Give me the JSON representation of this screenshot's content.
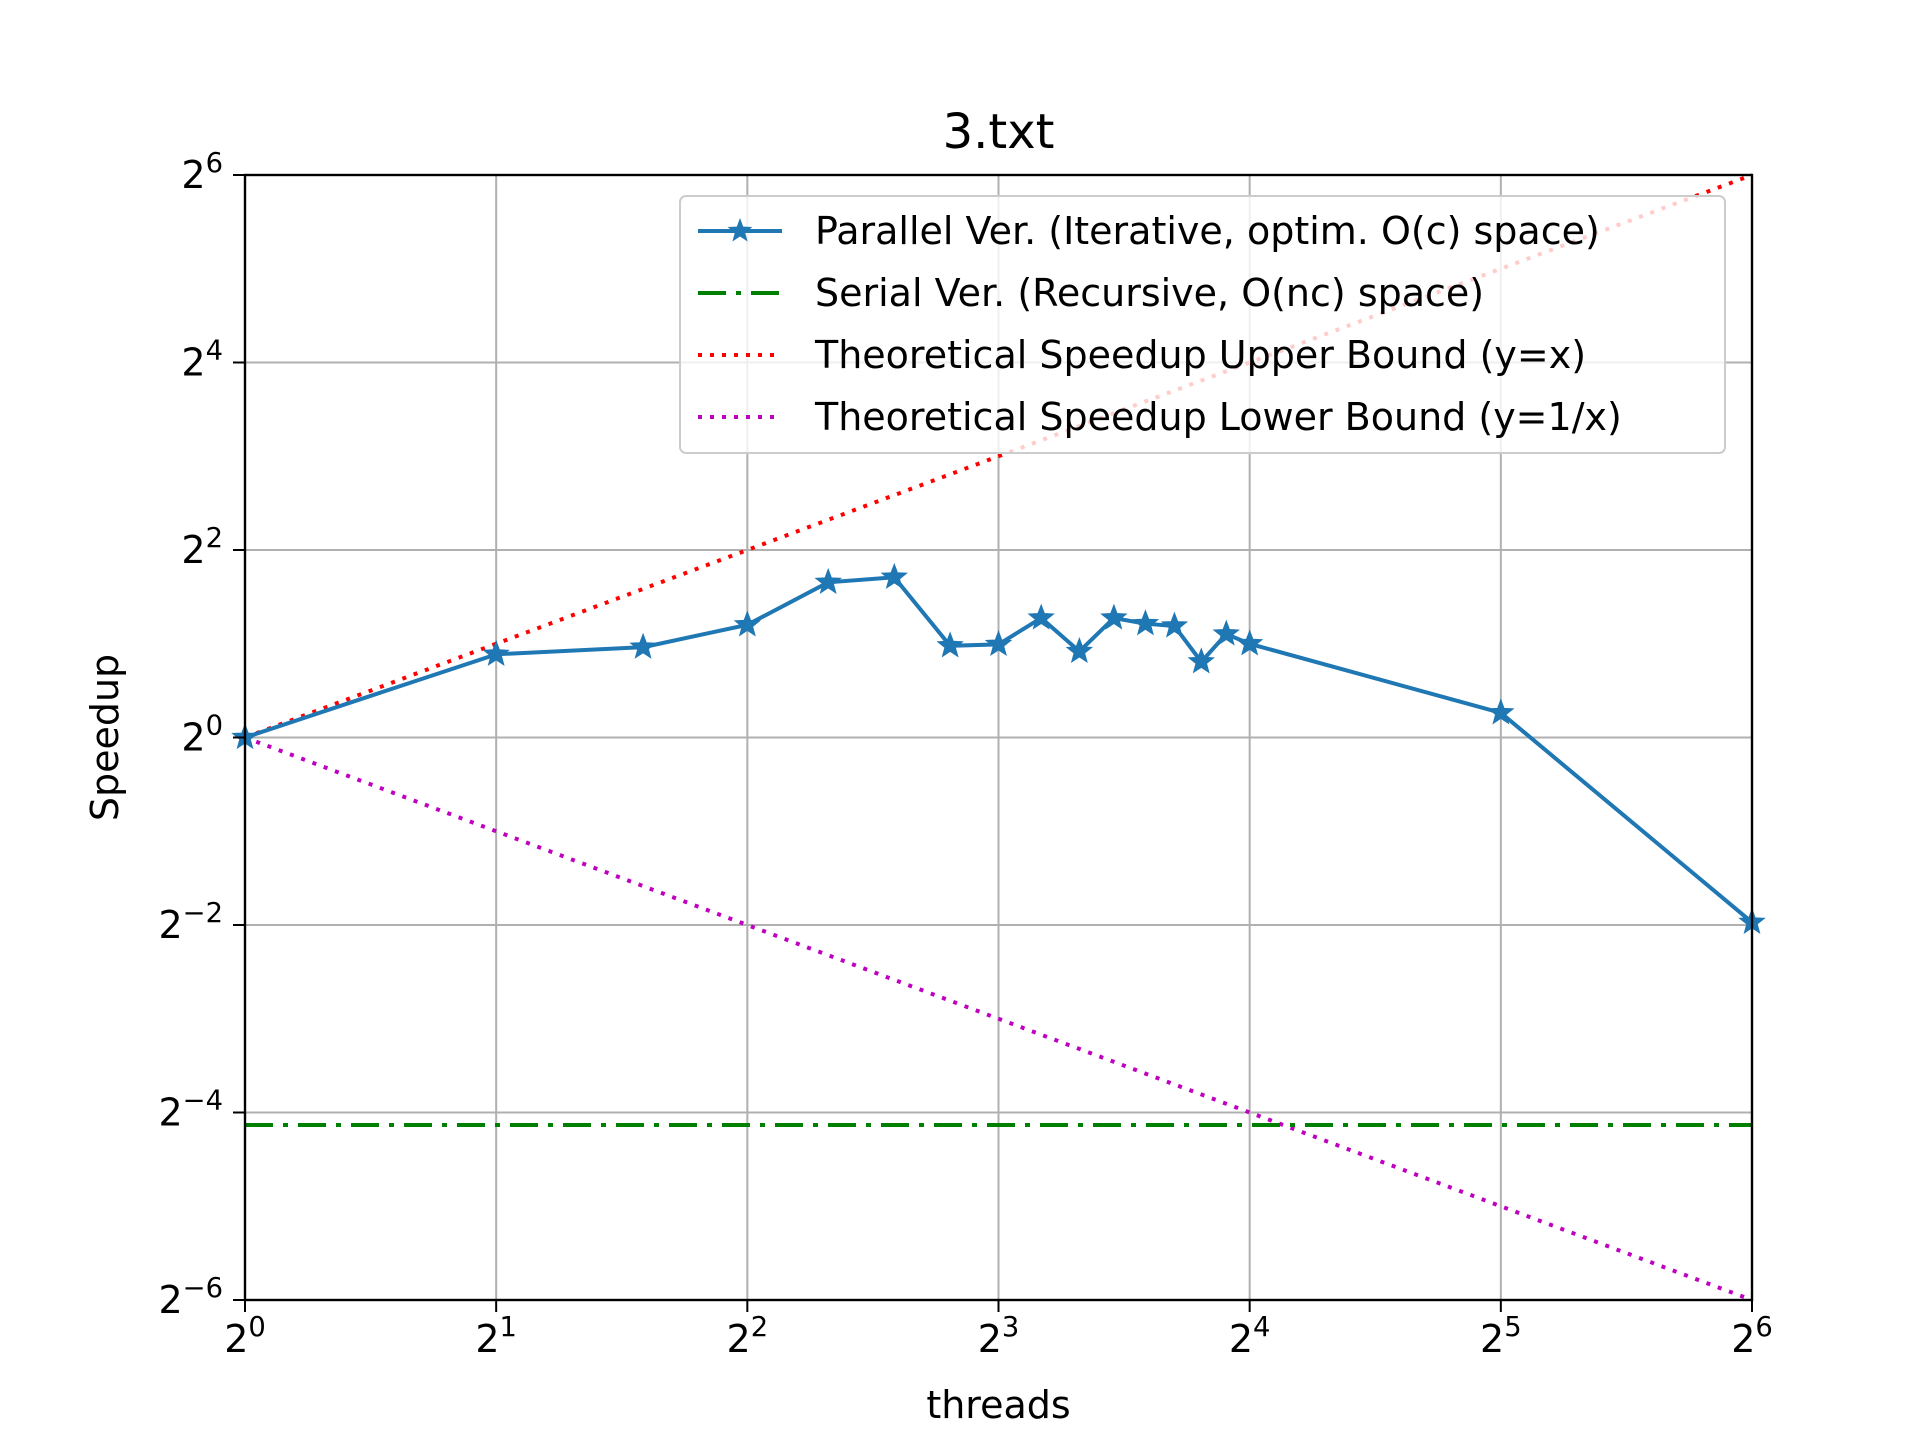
{
  "chart_data": {
    "type": "line",
    "title": "3.txt",
    "xlabel": "threads",
    "ylabel": "Speedup",
    "xscale": "log2",
    "yscale": "log2",
    "xlim": [
      1,
      64
    ],
    "ylim": [
      0.015625,
      64
    ],
    "grid": true,
    "legend_position": "top-right",
    "x_ticks": [
      {
        "base": "2",
        "exp": "0"
      },
      {
        "base": "2",
        "exp": "1"
      },
      {
        "base": "2",
        "exp": "2"
      },
      {
        "base": "2",
        "exp": "3"
      },
      {
        "base": "2",
        "exp": "4"
      },
      {
        "base": "2",
        "exp": "5"
      },
      {
        "base": "2",
        "exp": "6"
      }
    ],
    "y_ticks": [
      {
        "base": "2",
        "exp": "−6"
      },
      {
        "base": "2",
        "exp": "−4"
      },
      {
        "base": "2",
        "exp": "−2"
      },
      {
        "base": "2",
        "exp": "0"
      },
      {
        "base": "2",
        "exp": "2"
      },
      {
        "base": "2",
        "exp": "4"
      },
      {
        "base": "2",
        "exp": "6"
      }
    ],
    "series": [
      {
        "name": "Parallel Ver. (Iterative, optim. O(c) space)",
        "color": "#1f77b4",
        "style": "solid",
        "marker": "star",
        "x": [
          1,
          2,
          3,
          4,
          5,
          6,
          7,
          8,
          9,
          10,
          11,
          12,
          13,
          14,
          15,
          16,
          32,
          64
        ],
        "y": [
          1.0,
          1.85,
          1.95,
          2.3,
          3.15,
          3.27,
          1.97,
          1.99,
          2.42,
          1.89,
          2.42,
          2.32,
          2.28,
          1.75,
          2.15,
          2.0,
          1.2,
          0.255
        ]
      },
      {
        "name": "Serial Ver. (Recursive, O(nc) space)",
        "color": "#008000",
        "style": "dashdot",
        "x": [
          1,
          64
        ],
        "y": [
          0.057,
          0.057
        ]
      },
      {
        "name": "Theoretical Speedup Upper Bound (y=x)",
        "color": "#ff0000",
        "style": "dotted",
        "x": [
          1,
          64
        ],
        "y": [
          1,
          64
        ]
      },
      {
        "name": "Theoretical Speedup Lower Bound (y=1/x)",
        "color": "#bf00bf",
        "style": "dotted",
        "x": [
          1,
          64
        ],
        "y": [
          1,
          0.015625
        ]
      }
    ]
  }
}
